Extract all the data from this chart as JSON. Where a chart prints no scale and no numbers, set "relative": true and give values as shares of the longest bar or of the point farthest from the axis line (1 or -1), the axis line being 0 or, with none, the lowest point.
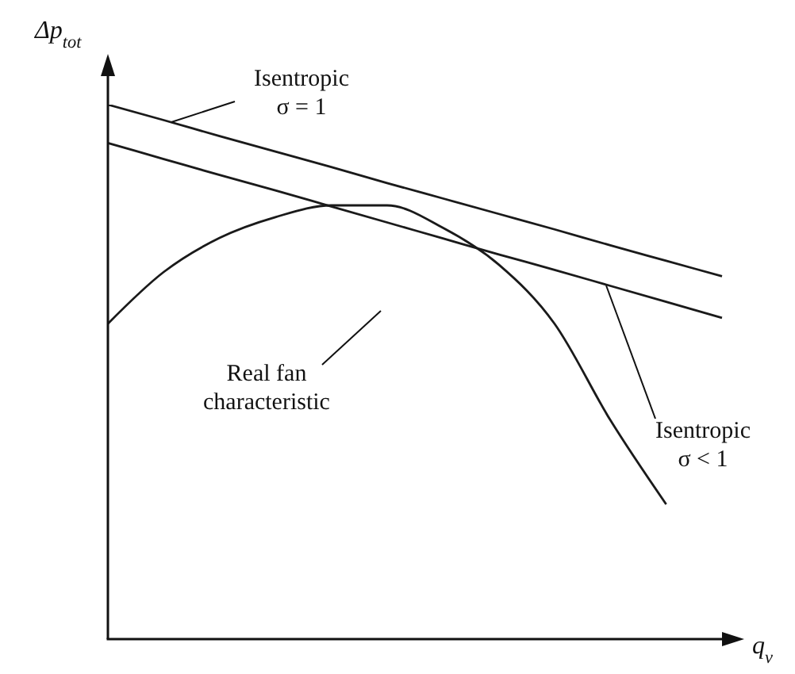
{
  "chart_data": {
    "type": "line",
    "relative": true,
    "xlabel": "q$_{v}$",
    "ylabel": "Δp$_{tot}$",
    "categories": [
      null,
      null,
      null,
      null,
      null,
      null,
      null,
      null,
      null,
      null,
      null,
      null
    ],
    "series": [
      {
        "color": "#1a1a1a",
        "values": [
          1,
          0.971,
          0.941,
          0.912,
          0.883,
          0.853,
          0.824,
          0.795,
          0.766,
          0.736,
          0.707,
          0.678
        ]
      },
      {
        "color": "#1a1a1a",
        "values": [
          0.928,
          0.898,
          0.868,
          0.839,
          0.809,
          0.779,
          0.749,
          0.719,
          0.69,
          0.66,
          0.63,
          0.6
        ]
      },
      {
        "color": "#1a1a1a",
        "values": [
          0.589,
          0.686,
          0.75,
          0.789,
          0.811,
          0.811,
          0.769,
          0.7,
          0.589,
          0.408,
          0.25,
          null
        ]
      }
    ],
    "annotations": [
      "Isentropic\nσ = 1",
      "Isentropic\nσ < 1",
      "Real fan\ncharacteristic"
    ],
    "grid": false,
    "marker": "none",
    "line_style": "solid"
  }
}
